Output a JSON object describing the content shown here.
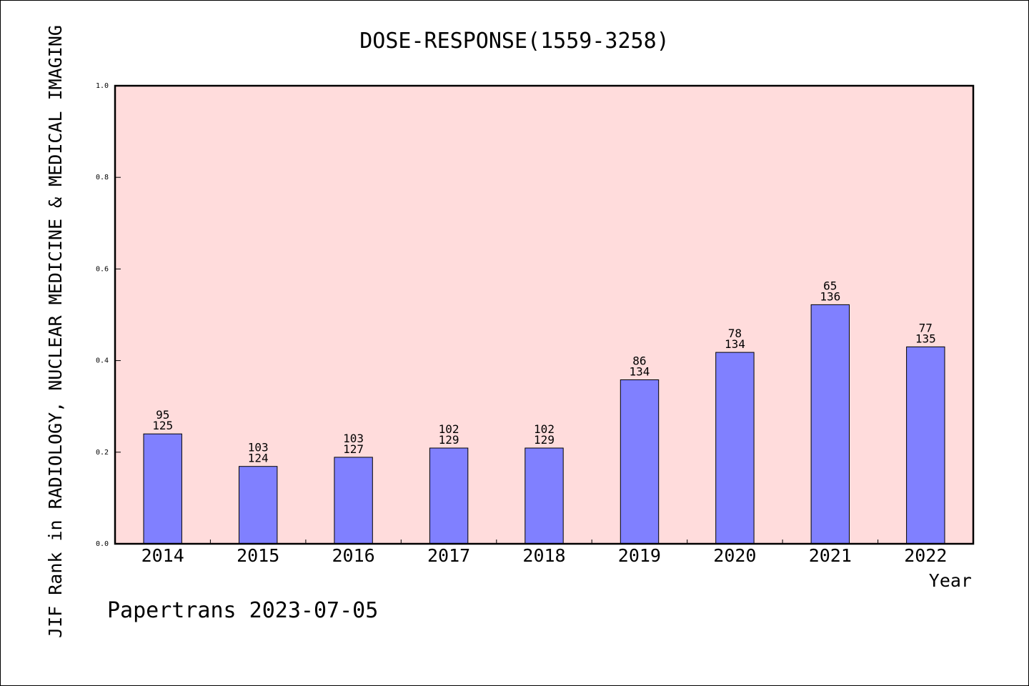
{
  "chart_data": {
    "type": "bar",
    "title": "DOSE-RESPONSE(1559-3258)",
    "xlabel": "Year",
    "ylabel": "JIF Rank in RADIOLOGY, NUCLEAR MEDICINE & MEDICAL IMAGING",
    "categories": [
      "2014",
      "2015",
      "2016",
      "2017",
      "2018",
      "2019",
      "2020",
      "2021",
      "2022"
    ],
    "values": [
      0.24,
      0.169,
      0.189,
      0.209,
      0.209,
      0.358,
      0.418,
      0.522,
      0.43
    ],
    "rank_labels": [
      "95",
      "103",
      "103",
      "102",
      "102",
      "86",
      "78",
      "65",
      "77"
    ],
    "total_labels": [
      "125",
      "124",
      "127",
      "129",
      "129",
      "134",
      "134",
      "136",
      "135"
    ],
    "ylim": [
      0,
      1.0
    ],
    "yticks": [
      "0.0",
      "0.2",
      "0.4",
      "0.6",
      "0.8",
      "1.0"
    ],
    "legend": "none",
    "grid": false,
    "colors": {
      "bar": "#8080ff",
      "plot_bg": "#ffdcdc",
      "axis": "#000000"
    }
  },
  "footer": {
    "watermark": "Papertrans 2023-07-05"
  }
}
